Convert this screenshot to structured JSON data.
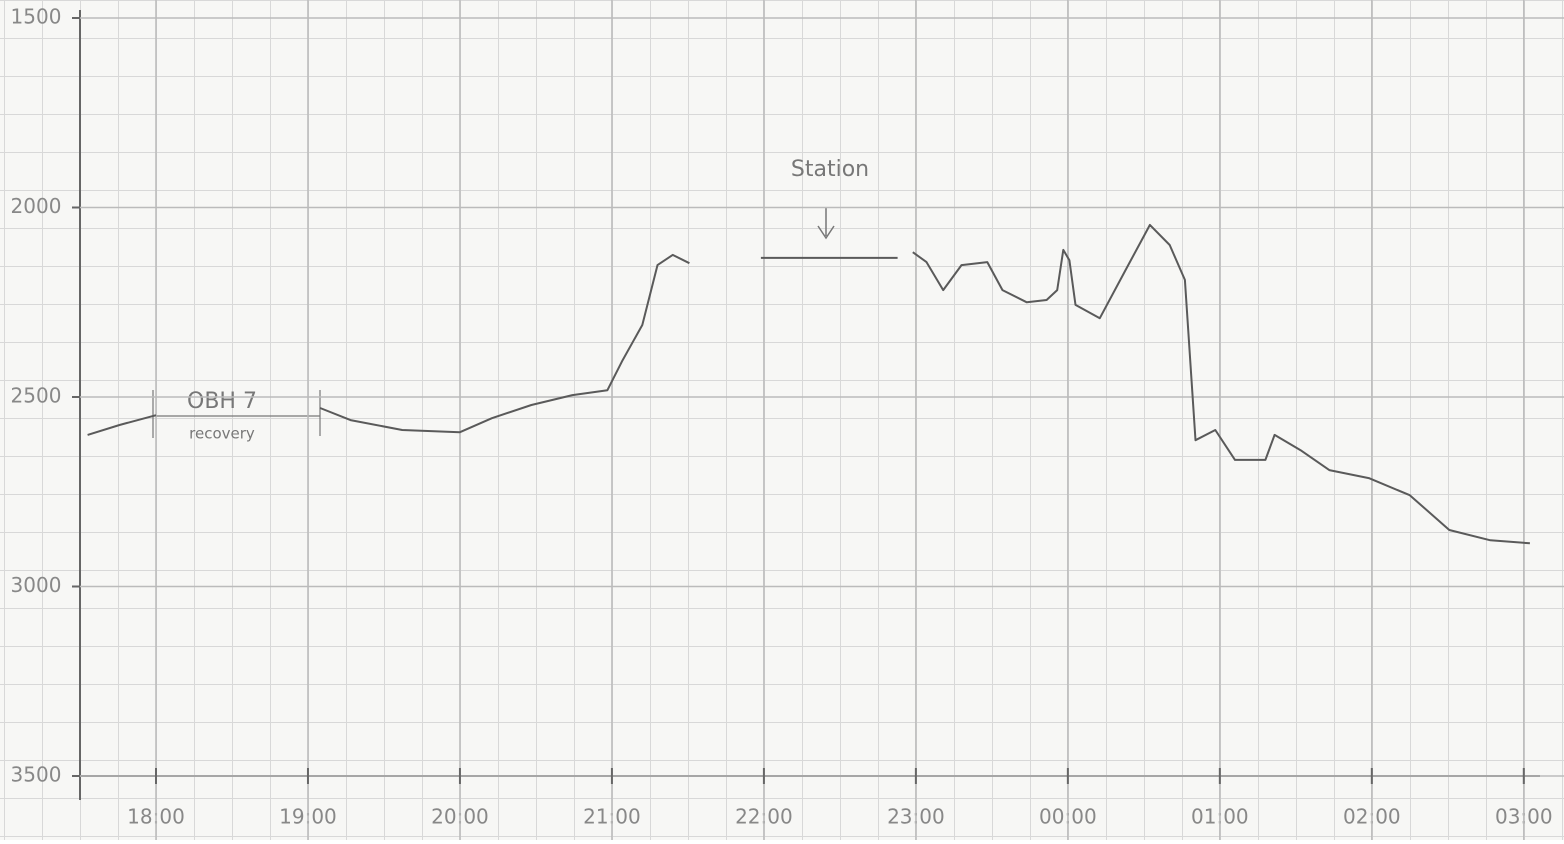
{
  "chart_data": {
    "type": "line",
    "annotations": [
      "Station",
      "OBH 7",
      "recovery"
    ],
    "x": [
      17.55,
      17.76,
      18.0,
      18.5,
      19.08,
      19.28,
      19.62,
      20.0,
      20.21,
      20.47,
      20.74,
      20.97,
      21.07,
      21.2,
      21.3,
      21.4,
      21.51,
      21.75,
      21.98,
      22.88,
      22.93,
      22.98,
      23.07,
      23.18,
      23.3,
      23.47,
      23.57,
      23.73,
      23.86,
      23.93,
      23.97,
      24.01,
      24.05,
      24.21,
      24.38,
      24.54,
      24.67,
      24.77,
      24.84,
      24.97,
      25.1,
      25.3,
      25.36,
      25.53,
      25.72,
      25.98,
      26.25,
      26.51,
      26.78,
      27.04
    ],
    "series": [
      {
        "color": "#5a5a5a",
        "values": [
          2600,
          2574,
          2548,
          null,
          2529,
          2561,
          2587,
          2593,
          2556,
          2521,
          2495,
          2482,
          2403,
          2310,
          2152,
          2125,
          2147,
          null,
          2133,
          2133,
          null,
          2118,
          2144,
          2218,
          2152,
          2144,
          2218,
          2250,
          2244,
          2218,
          2112,
          2139,
          2257,
          2292,
          2165,
          2046,
          2099,
          2191,
          2614,
          2587,
          2666,
          2666,
          2600,
          2640,
          2693,
          2714,
          2759,
          2851,
          2878,
          2886
        ]
      }
    ],
    "xlim": [
      17.5,
      27.1
    ],
    "xticks": [
      {
        "value": 18,
        "label": "18:00"
      },
      {
        "value": 19,
        "label": "19:00"
      },
      {
        "value": 20,
        "label": "20:00"
      },
      {
        "value": 21,
        "label": "21:00"
      },
      {
        "value": 22,
        "label": "22:00"
      },
      {
        "value": 23,
        "label": "23:00"
      },
      {
        "value": 24,
        "label": "00:00"
      },
      {
        "value": 25,
        "label": "01:00"
      },
      {
        "value": 26,
        "label": "02:00"
      },
      {
        "value": 27,
        "label": "03:00"
      }
    ],
    "ylim": [
      3500,
      1500
    ],
    "yticks": [
      1500,
      2000,
      2500,
      3000,
      3500
    ],
    "grid": true
  }
}
